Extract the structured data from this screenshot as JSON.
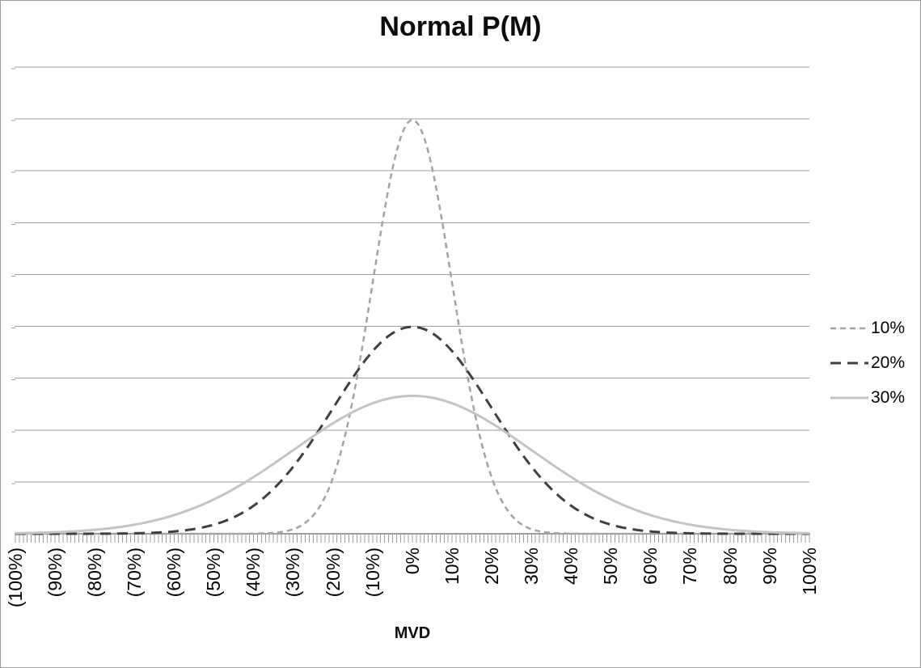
{
  "window": {
    "background": "#ffffff",
    "border_color": "#9b9b9b"
  },
  "colors": {
    "gridline": "#9d9d9d",
    "axis_line": "#9d9d9d",
    "minor_tick": "#9d9d9d",
    "label_text": "#000000",
    "title_text": "#0d0d0d"
  },
  "chart_data": {
    "type": "line",
    "title": "Normal P(M)",
    "xlabel": "MVD",
    "ylabel": "",
    "grid": true,
    "x_axis": {
      "range_percent": [
        -100,
        100
      ],
      "major_step_percent": 10,
      "minor_tick_step_percent": 1,
      "tick_labels": [
        "(100%)",
        "(90%)",
        "(80%)",
        "(70%)",
        "(60%)",
        "(50%)",
        "(40%)",
        "(30%)",
        "(20%)",
        "(10%)",
        "0%",
        "10%",
        "20%",
        "30%",
        "40%",
        "50%",
        "60%",
        "70%",
        "80%",
        "90%",
        "100%"
      ]
    },
    "y_axis": {
      "range_density": [
        0,
        4.5
      ],
      "gridline_step_density": 0.5,
      "gridline_count": 9,
      "tick_labels_visible": false
    },
    "legend": {
      "position": "right",
      "entries": [
        "10%",
        "20%",
        "30%"
      ]
    },
    "series": [
      {
        "name": "10%",
        "curve": "normal_pdf",
        "mean": 0.0,
        "sigma": 0.1,
        "peak_density": 3.989,
        "style": {
          "color": "#a3a3a3",
          "dash": "7 5",
          "width": 2.5
        },
        "values_at_major_ticks": [
          0,
          0,
          0,
          0,
          0,
          0,
          0.001,
          0.044,
          0.54,
          2.42,
          3.989,
          2.42,
          0.54,
          0.044,
          0.001,
          0,
          0,
          0,
          0,
          0,
          0
        ]
      },
      {
        "name": "20%",
        "curve": "normal_pdf",
        "mean": 0.0,
        "sigma": 0.2,
        "peak_density": 1.995,
        "style": {
          "color": "#3f3f3f",
          "dash": "13 8",
          "width": 3
        },
        "values_at_major_ticks": [
          0,
          0,
          0.001,
          0.004,
          0.022,
          0.088,
          0.27,
          0.648,
          1.21,
          1.76,
          1.995,
          1.76,
          1.21,
          0.648,
          0.27,
          0.088,
          0.022,
          0.004,
          0.001,
          0,
          0
        ]
      },
      {
        "name": "30%",
        "curve": "normal_pdf",
        "mean": 0.0,
        "sigma": 0.3,
        "peak_density": 1.33,
        "style": {
          "color": "#c4c4c4",
          "dash": "",
          "width": 3
        },
        "values_at_major_ticks": [
          0.005,
          0.015,
          0.038,
          0.087,
          0.18,
          0.332,
          0.547,
          0.807,
          1.065,
          1.258,
          1.33,
          1.258,
          1.065,
          0.807,
          0.547,
          0.332,
          0.18,
          0.087,
          0.038,
          0.015,
          0.005
        ]
      }
    ]
  }
}
